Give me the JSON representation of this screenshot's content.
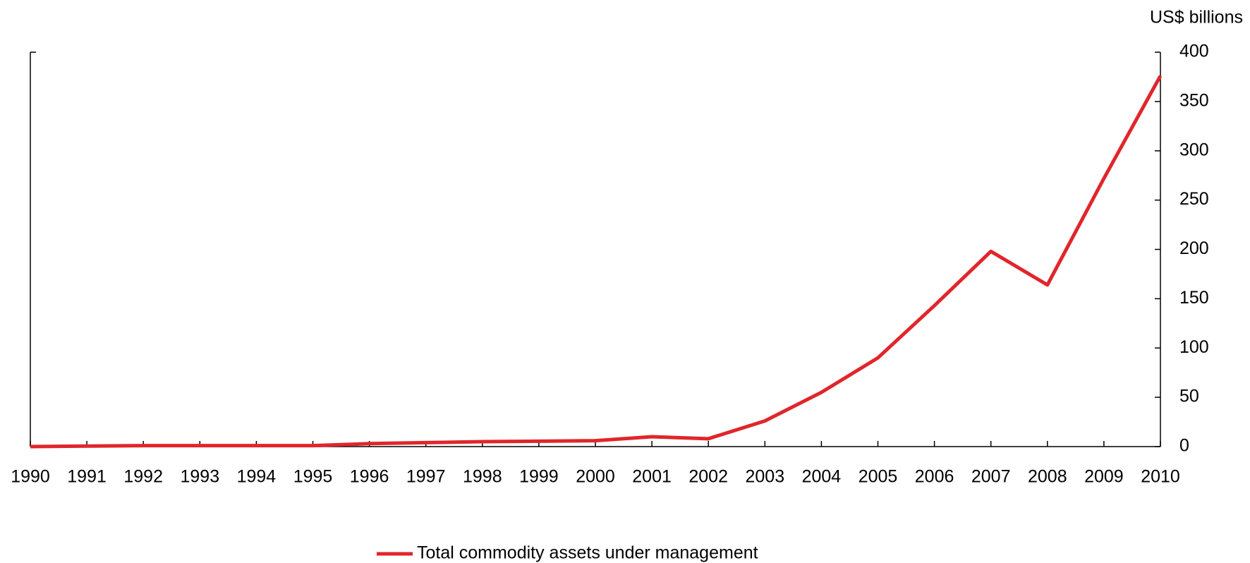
{
  "chart_data": {
    "type": "line",
    "y_axis_label": "US$ billions",
    "x": [
      1990,
      1991,
      1992,
      1993,
      1994,
      1995,
      1996,
      1997,
      1998,
      1999,
      2000,
      2001,
      2002,
      2003,
      2004,
      2005,
      2006,
      2007,
      2008,
      2009,
      2010
    ],
    "series": [
      {
        "name": "Total commodity assets under management",
        "color": "#e0262b",
        "values": [
          0,
          0.5,
          1,
          1,
          1,
          1,
          3,
          4,
          5,
          5.5,
          6,
          10,
          8,
          26,
          55,
          90,
          143,
          198,
          164,
          272,
          376
        ]
      }
    ],
    "xlim": [
      1990,
      2010
    ],
    "xticks": [
      1990,
      1991,
      1992,
      1993,
      1994,
      1995,
      1996,
      1997,
      1998,
      1999,
      2000,
      2001,
      2002,
      2003,
      2004,
      2005,
      2006,
      2007,
      2008,
      2009,
      2010
    ],
    "ylim": [
      0,
      400
    ],
    "yticks": [
      0,
      50,
      100,
      150,
      200,
      250,
      300,
      350,
      400
    ],
    "y_axis_side": "right",
    "legend": "bottom"
  }
}
